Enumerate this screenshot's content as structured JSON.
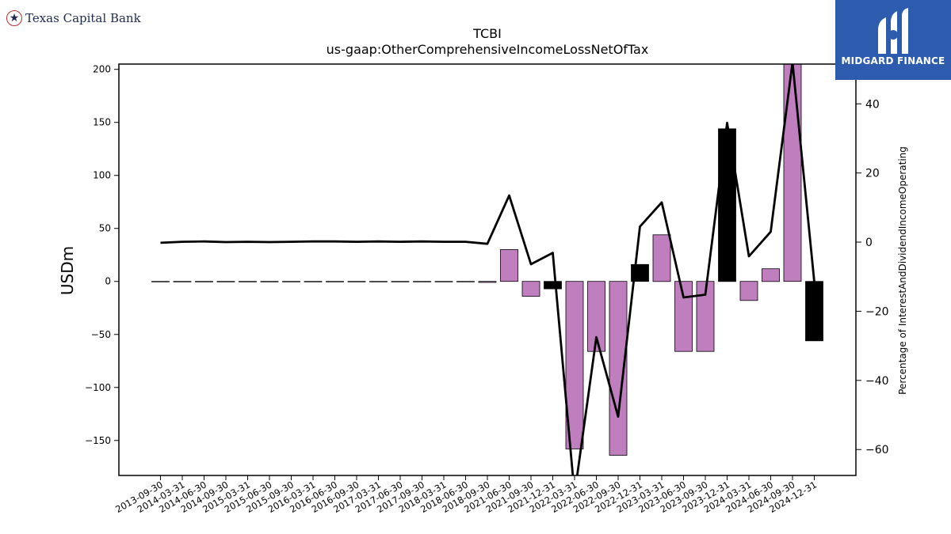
{
  "branding": {
    "left_logo_text": "Texas Capital Bank",
    "left_logo_icon": "star-icon",
    "right_logo_text": "MIDGARD FINANCE",
    "right_logo_icon": "midgard-logo-icon",
    "right_logo_bg": "#2d5cae"
  },
  "chart_data": {
    "type": "bar",
    "title": "TCBI",
    "subtitle": "us-gaap:OtherComprehensiveIncomeLossNetOfTax",
    "ylabel": "USDm",
    "y2label": "Percentage of InterestAndDividendIncomeOperating",
    "ylim": [
      -183,
      205
    ],
    "y2lim": [
      -67.5,
      51.5
    ],
    "yticks": [
      -150,
      -100,
      -50,
      0,
      50,
      100,
      150,
      200
    ],
    "y2ticks": [
      -60,
      -40,
      -20,
      0,
      20,
      40
    ],
    "categories": [
      "2013-09-30",
      "2014-03-31",
      "2014-06-30",
      "2014-09-30",
      "2015-03-31",
      "2015-06-30",
      "2015-09-30",
      "2016-03-31",
      "2016-06-30",
      "2016-09-30",
      "2017-03-31",
      "2017-06-30",
      "2017-09-30",
      "2018-03-31",
      "2018-06-30",
      "2018-09-30",
      "2021-06-30",
      "2021-09-30",
      "2021-12-31",
      "2022-03-31",
      "2022-06-30",
      "2022-09-30",
      "2022-12-31",
      "2023-03-31",
      "2023-06-30",
      "2023-09-30",
      "2023-12-31",
      "2024-03-31",
      "2024-06-30",
      "2024-09-30",
      "2024-12-31"
    ],
    "series": [
      {
        "kind": "bar",
        "values": [
          0,
          0,
          0,
          0,
          0,
          0,
          0,
          0,
          0,
          0,
          0,
          0,
          0,
          0,
          0,
          -1,
          30,
          -14,
          -7,
          -158,
          -66,
          -164,
          16,
          44,
          -66,
          -66,
          144,
          -18,
          12,
          205,
          -56
        ],
        "colors": [
          "#000000",
          "#000000",
          "#000000",
          "#000000",
          "#000000",
          "#000000",
          "#000000",
          "#000000",
          "#000000",
          "#000000",
          "#000000",
          "#000000",
          "#000000",
          "#000000",
          "#000000",
          "#bf7fbf",
          "#bf7fbf",
          "#bf7fbf",
          "#000000",
          "#bf7fbf",
          "#bf7fbf",
          "#bf7fbf",
          "#000000",
          "#bf7fbf",
          "#bf7fbf",
          "#bf7fbf",
          "#000000",
          "#bf7fbf",
          "#bf7fbf",
          "#bf7fbf",
          "#000000"
        ]
      },
      {
        "kind": "line",
        "axis": "right",
        "color": "#000000",
        "values": [
          -0.2,
          0.1,
          0.2,
          0.0,
          0.1,
          0.0,
          0.1,
          0.2,
          0.2,
          0.1,
          0.2,
          0.1,
          0.2,
          0.1,
          0.1,
          -0.5,
          13.5,
          -6.4,
          -3.1,
          -73.0,
          -27.5,
          -50.5,
          4.5,
          11.5,
          -16.0,
          -15.2,
          34.5,
          -4.1,
          3.0,
          52.0,
          -11.5
        ]
      }
    ],
    "grid": false,
    "legend": "none"
  }
}
